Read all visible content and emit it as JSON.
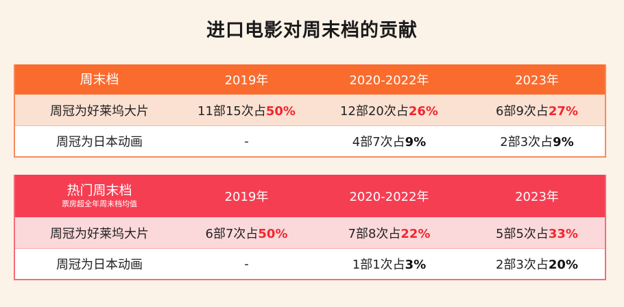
{
  "title": "进口电影对周末档的贡献",
  "tables": [
    {
      "header": {
        "label": "周末档",
        "sub": "",
        "years": [
          "2019年",
          "2020-2022年",
          "2023年"
        ]
      },
      "rows": [
        {
          "label": "周冠为好莱坞大片",
          "cells": [
            {
              "text": "11部15次占",
              "pct": "50%"
            },
            {
              "text": "12部20次占",
              "pct": "26%"
            },
            {
              "text": "6部9次占",
              "pct": "27%"
            }
          ]
        },
        {
          "label": "周冠为日本动画",
          "cells": [
            {
              "text": "-",
              "pct": ""
            },
            {
              "text": "4部7次占",
              "pct": "9%"
            },
            {
              "text": "2部3次占",
              "pct": "9%"
            }
          ]
        }
      ]
    },
    {
      "header": {
        "label": "热门周末档",
        "sub": "票房超全年周末档均值",
        "years": [
          "2019年",
          "2020-2022年",
          "2023年"
        ]
      },
      "rows": [
        {
          "label": "周冠为好莱坞大片",
          "cells": [
            {
              "text": "6部7次占",
              "pct": "50%"
            },
            {
              "text": "7部8次占",
              "pct": "22%"
            },
            {
              "text": "5部5次占",
              "pct": "33%"
            }
          ]
        },
        {
          "label": "周冠为日本动画",
          "cells": [
            {
              "text": "-",
              "pct": ""
            },
            {
              "text": "1部1次占",
              "pct": "3%"
            },
            {
              "text": "2部3次占",
              "pct": "20%"
            }
          ]
        }
      ]
    }
  ]
}
